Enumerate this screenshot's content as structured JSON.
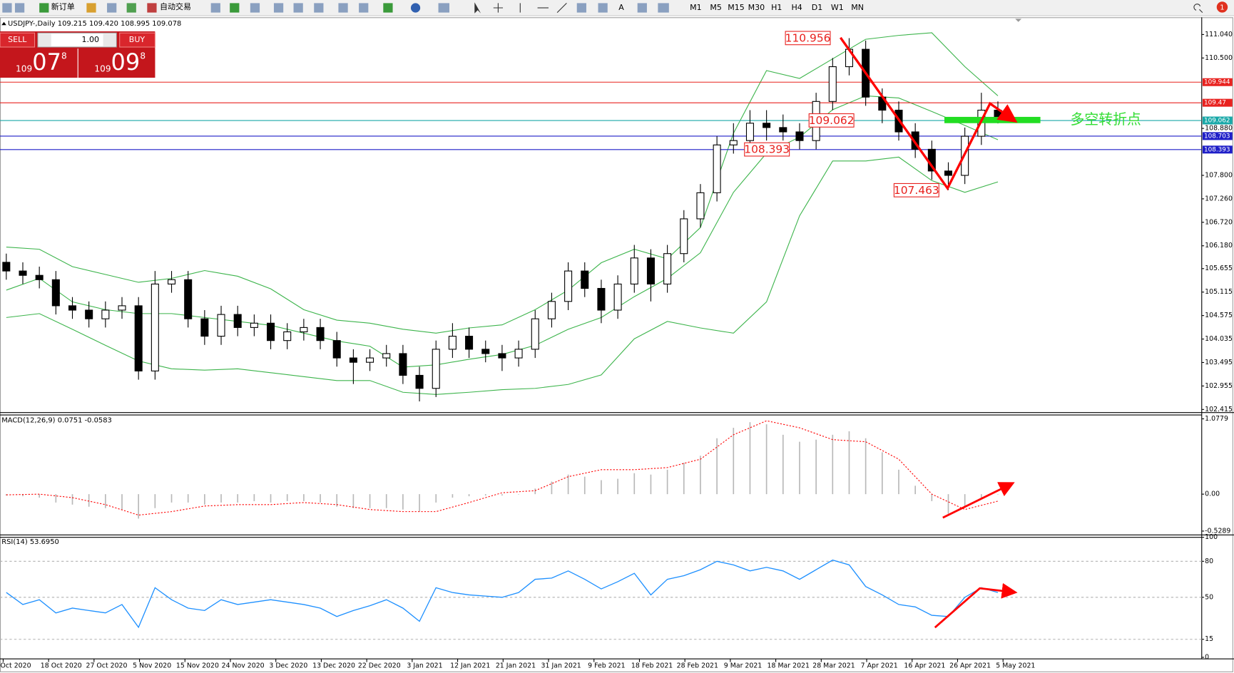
{
  "toolbar": {
    "new_order": "新订单",
    "auto_trading": "自动交易",
    "timeframes": [
      "M1",
      "M5",
      "M15",
      "M30",
      "H1",
      "H4",
      "D1",
      "W1",
      "MN"
    ],
    "alerts": 1
  },
  "trade_panel": {
    "sell": "SELL",
    "buy": "BUY",
    "lots": "1.00",
    "bid": {
      "big": "109",
      "mid": "07",
      "small": "8"
    },
    "ask": {
      "big": "109",
      "mid": "09",
      "small": "8"
    }
  },
  "chart_data": [
    {
      "type": "candlestick",
      "title": "USDJPY-,Daily 109.215 109.420 108.995 109.078",
      "open": [
        105.8,
        105.6,
        105.5,
        105.4,
        104.8,
        104.7,
        104.5,
        104.7,
        104.8,
        103.3,
        105.3,
        105.4,
        104.5,
        104.1,
        104.6,
        104.3,
        104.4,
        104.0,
        104.2,
        104.3,
        104.0,
        103.6,
        103.5,
        103.6,
        103.7,
        103.2,
        102.9,
        103.8,
        104.1,
        103.8,
        103.7,
        103.6,
        103.8,
        104.5,
        104.9,
        105.6,
        105.2,
        104.7,
        105.3,
        105.9,
        105.3,
        106.0,
        106.8,
        107.4,
        108.5,
        108.6,
        109.0,
        108.9,
        108.8,
        108.6,
        109.5,
        110.3,
        110.7,
        109.6,
        109.3,
        108.8,
        108.4,
        107.9,
        107.8,
        108.7,
        109.3
      ],
      "high": [
        106.0,
        105.8,
        105.7,
        105.6,
        105.0,
        104.9,
        104.9,
        105.0,
        105.0,
        105.6,
        105.6,
        105.6,
        104.7,
        104.8,
        104.8,
        104.6,
        104.6,
        104.4,
        104.5,
        104.5,
        104.2,
        103.8,
        103.8,
        103.9,
        103.9,
        103.4,
        104.0,
        104.4,
        104.3,
        104.0,
        103.9,
        104.0,
        104.7,
        105.1,
        105.8,
        105.8,
        105.4,
        105.5,
        106.2,
        106.1,
        106.2,
        107.0,
        107.6,
        108.7,
        109.0,
        109.3,
        109.3,
        109.2,
        109.0,
        109.7,
        110.5,
        110.956,
        110.9,
        109.8,
        109.5,
        109.0,
        108.6,
        108.1,
        108.9,
        109.7,
        109.5
      ],
      "low": [
        105.4,
        105.3,
        105.2,
        104.6,
        104.5,
        104.3,
        104.3,
        104.5,
        103.1,
        103.1,
        105.1,
        104.3,
        103.9,
        103.9,
        104.1,
        104.1,
        103.8,
        103.8,
        104.0,
        103.8,
        103.4,
        103.0,
        103.3,
        103.4,
        103.0,
        102.6,
        102.7,
        103.6,
        103.6,
        103.5,
        103.3,
        103.4,
        103.6,
        104.3,
        104.7,
        105.0,
        104.4,
        104.5,
        105.1,
        104.9,
        105.1,
        105.8,
        106.6,
        107.2,
        108.3,
        108.4,
        108.6,
        108.6,
        108.4,
        108.4,
        109.3,
        110.1,
        109.4,
        109.0,
        108.6,
        108.2,
        107.7,
        107.463,
        107.6,
        108.5,
        108.995
      ],
      "close": [
        105.6,
        105.5,
        105.4,
        104.8,
        104.7,
        104.5,
        104.7,
        104.8,
        103.3,
        105.3,
        105.4,
        104.5,
        104.1,
        104.6,
        104.3,
        104.4,
        104.0,
        104.2,
        104.3,
        104.0,
        103.6,
        103.5,
        103.6,
        103.7,
        103.2,
        102.9,
        103.8,
        104.1,
        103.8,
        103.7,
        103.6,
        103.8,
        104.5,
        104.9,
        105.6,
        105.2,
        104.7,
        105.3,
        105.9,
        105.3,
        106.0,
        106.8,
        107.4,
        108.5,
        108.6,
        109.0,
        108.9,
        108.8,
        108.6,
        109.5,
        110.3,
        110.7,
        109.6,
        109.3,
        108.8,
        108.4,
        107.9,
        107.8,
        108.7,
        109.3,
        109.1
      ],
      "up_color": "#ffffff",
      "down_color": "#000000",
      "bollinger": [
        {
          "color": "#3cb44b",
          "values": [
            106.15,
            106.1,
            105.7,
            105.52,
            105.34,
            105.43,
            105.61,
            105.48,
            105.19,
            104.71,
            104.47,
            104.4,
            104.26,
            104.17,
            104.29,
            104.36,
            104.71,
            105.16,
            105.79,
            106.1,
            105.88,
            106.6,
            108.77,
            110.21,
            110.03,
            110.48,
            110.93,
            111.02,
            111.08,
            110.3,
            109.63
          ]
        },
        {
          "color": "#3cb44b",
          "values": [
            105.16,
            105.43,
            104.89,
            104.71,
            104.62,
            104.62,
            104.53,
            104.44,
            104.35,
            104.17,
            103.99,
            103.87,
            103.39,
            103.44,
            103.57,
            103.68,
            103.89,
            104.26,
            104.53,
            105.01,
            105.43,
            106.02,
            107.41,
            108.31,
            108.68,
            109.31,
            109.63,
            109.58,
            109.27,
            108.95,
            108.62
          ]
        },
        {
          "color": "#3cb44b",
          "values": [
            104.53,
            104.62,
            104.26,
            103.89,
            103.53,
            103.35,
            103.32,
            103.35,
            103.26,
            103.17,
            103.08,
            103.08,
            102.81,
            102.76,
            102.81,
            102.87,
            102.9,
            102.99,
            103.21,
            104.04,
            104.44,
            104.29,
            104.17,
            104.89,
            106.87,
            108.13,
            108.13,
            108.22,
            107.68,
            107.41,
            107.65
          ]
        }
      ],
      "price_lines": [
        {
          "value": 109.944,
          "color": "#e8221f"
        },
        {
          "value": 109.47,
          "color": "#e8221f"
        },
        {
          "value": 109.062,
          "color": "#18a8a8"
        },
        {
          "value": 108.703,
          "color": "#1e1ec8"
        },
        {
          "value": 108.393,
          "color": "#1e1ec8"
        }
      ],
      "annotations": [
        110.956,
        109.062,
        108.393,
        107.463
      ],
      "annotation_color": "#e8221f",
      "note": "多空转折点",
      "note_color": "#33dd33",
      "ylim": [
        102.361,
        111.437
      ],
      "yticks": [
        {
          "value": 111.04,
          "label": "111.040"
        },
        {
          "value": 110.5,
          "label": "110.500"
        },
        {
          "value": 108.88,
          "label": "108.880"
        },
        {
          "value": 107.8,
          "label": "107.800"
        },
        {
          "value": 107.26,
          "label": "107.260"
        },
        {
          "value": 106.72,
          "label": "106.720"
        },
        {
          "value": 106.18,
          "label": "106.180"
        },
        105.655,
        105.115,
        104.575,
        104.035,
        103.495,
        102.955,
        102.415
      ]
    },
    {
      "type": "bar",
      "title": "MACD(12,26,9) 0.0751 -0.0583",
      "color": "#b8b8b8",
      "values": [
        -0.02,
        -0.03,
        -0.05,
        -0.12,
        -0.15,
        -0.18,
        -0.2,
        -0.22,
        -0.35,
        -0.2,
        -0.12,
        -0.12,
        -0.15,
        -0.12,
        -0.12,
        -0.1,
        -0.12,
        -0.1,
        -0.1,
        -0.12,
        -0.18,
        -0.2,
        -0.2,
        -0.2,
        -0.22,
        -0.25,
        -0.12,
        -0.05,
        -0.03,
        -0.02,
        -0.02,
        0.0,
        0.08,
        0.18,
        0.28,
        0.25,
        0.2,
        0.22,
        0.3,
        0.28,
        0.35,
        0.45,
        0.55,
        0.8,
        0.95,
        1.03,
        1.0,
        0.85,
        0.75,
        0.78,
        0.85,
        0.9,
        0.8,
        0.6,
        0.35,
        0.12,
        -0.1,
        -0.28,
        -0.18,
        -0.05,
        0.0
      ],
      "signal": {
        "color": "#ff0000",
        "values": [
          -0.01,
          0.0,
          -0.05,
          -0.15,
          -0.3,
          -0.25,
          -0.17,
          -0.15,
          -0.15,
          -0.12,
          -0.15,
          -0.22,
          -0.25,
          -0.25,
          -0.12,
          0.02,
          0.05,
          0.25,
          0.35,
          0.35,
          0.38,
          0.5,
          0.85,
          1.05,
          0.95,
          0.78,
          0.75,
          0.5,
          0.0,
          -0.22,
          -0.1
        ]
      },
      "ylim": [
        -0.584,
        1.145
      ],
      "yticks": [
        1.0779,
        {
          "value": 0,
          "label": "0.00"
        },
        -0.5289
      ]
    },
    {
      "type": "line",
      "title": "RSI(14) 53.6950",
      "color": "#1e90ff",
      "values": [
        54,
        44,
        48,
        37,
        41,
        39,
        37,
        44,
        25,
        58,
        48,
        41,
        39,
        48,
        44,
        46,
        48,
        46,
        44,
        41,
        34,
        39,
        43,
        48,
        41,
        30,
        58,
        54,
        52,
        51,
        50,
        54,
        65,
        66,
        72,
        65,
        57,
        63,
        70,
        52,
        65,
        68,
        73,
        80,
        77,
        72,
        75,
        72,
        65,
        73,
        81,
        77,
        59,
        52,
        44,
        42,
        35,
        34,
        50,
        58,
        54
      ],
      "levels": [
        80,
        50,
        15
      ],
      "ylim": [
        0,
        100
      ],
      "yticks": [
        100,
        80,
        50,
        15,
        0
      ]
    }
  ],
  "time_axis": [
    "Oct 2020",
    "18 Oct 2020",
    "27 Oct 2020",
    "5 Nov 2020",
    "15 Nov 2020",
    "24 Nov 2020",
    "3 Dec 2020",
    "13 Dec 2020",
    "22 Dec 2020",
    "3 Jan 2021",
    "12 Jan 2021",
    "21 Jan 2021",
    "31 Jan 2021",
    "9 Feb 2021",
    "18 Feb 2021",
    "28 Feb 2021",
    "9 Mar 2021",
    "18 Mar 2021",
    "28 Mar 2021",
    "7 Apr 2021",
    "16 Apr 2021",
    "26 Apr 2021",
    "5 May 2021"
  ]
}
